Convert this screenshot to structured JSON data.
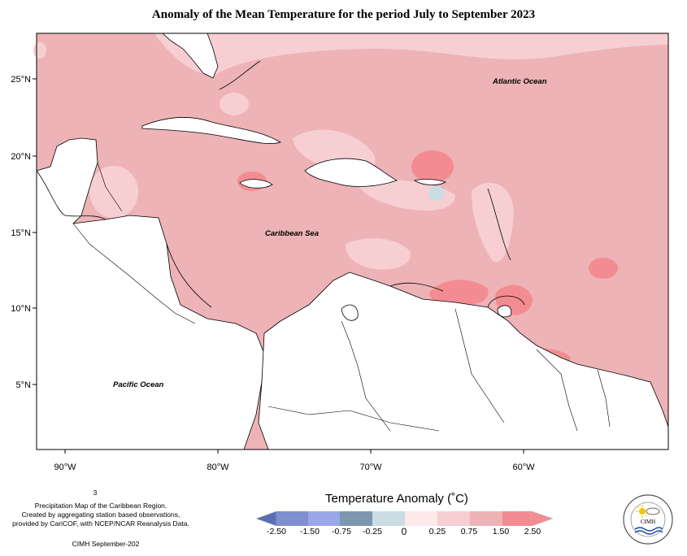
{
  "title": "Anomaly of the Mean Temperature for the period July to September 2023",
  "map": {
    "lon_ticks": [
      "90°W",
      "80°W",
      "70°W",
      "60°W"
    ],
    "lat_ticks": [
      "25°N",
      "20°N",
      "15°N",
      "10°N",
      "5°N"
    ],
    "labels": {
      "atlantic": "Atlantic Ocean",
      "caribbean": "Caribbean Sea",
      "pacific": "Pacific Ocean"
    }
  },
  "footnote": {
    "page_number": "3",
    "line1": "Precipitation Map of the Caribbean Region.",
    "line2": "Created by aggregating station based observations,",
    "line3": "provided by CariCOF, with NCEP/NCAR Reanalysis Data.",
    "credit": "CIMH September-202"
  },
  "colorbar": {
    "title": "Temperature Anomaly (˚C)",
    "ticks": [
      "-2.50",
      "-1.50",
      "-0.75",
      "-0.25",
      "0",
      "0.25",
      "0.75",
      "1.50",
      "2.50"
    ],
    "colors": [
      "#5b6fb5",
      "#7f8fd0",
      "#9aa8e8",
      "#7f96b0",
      "#c9dde3",
      "#fde9ea",
      "#f7cfd2",
      "#edb3b6",
      "#f38c92"
    ]
  },
  "logo": {
    "text": "CIMH"
  }
}
